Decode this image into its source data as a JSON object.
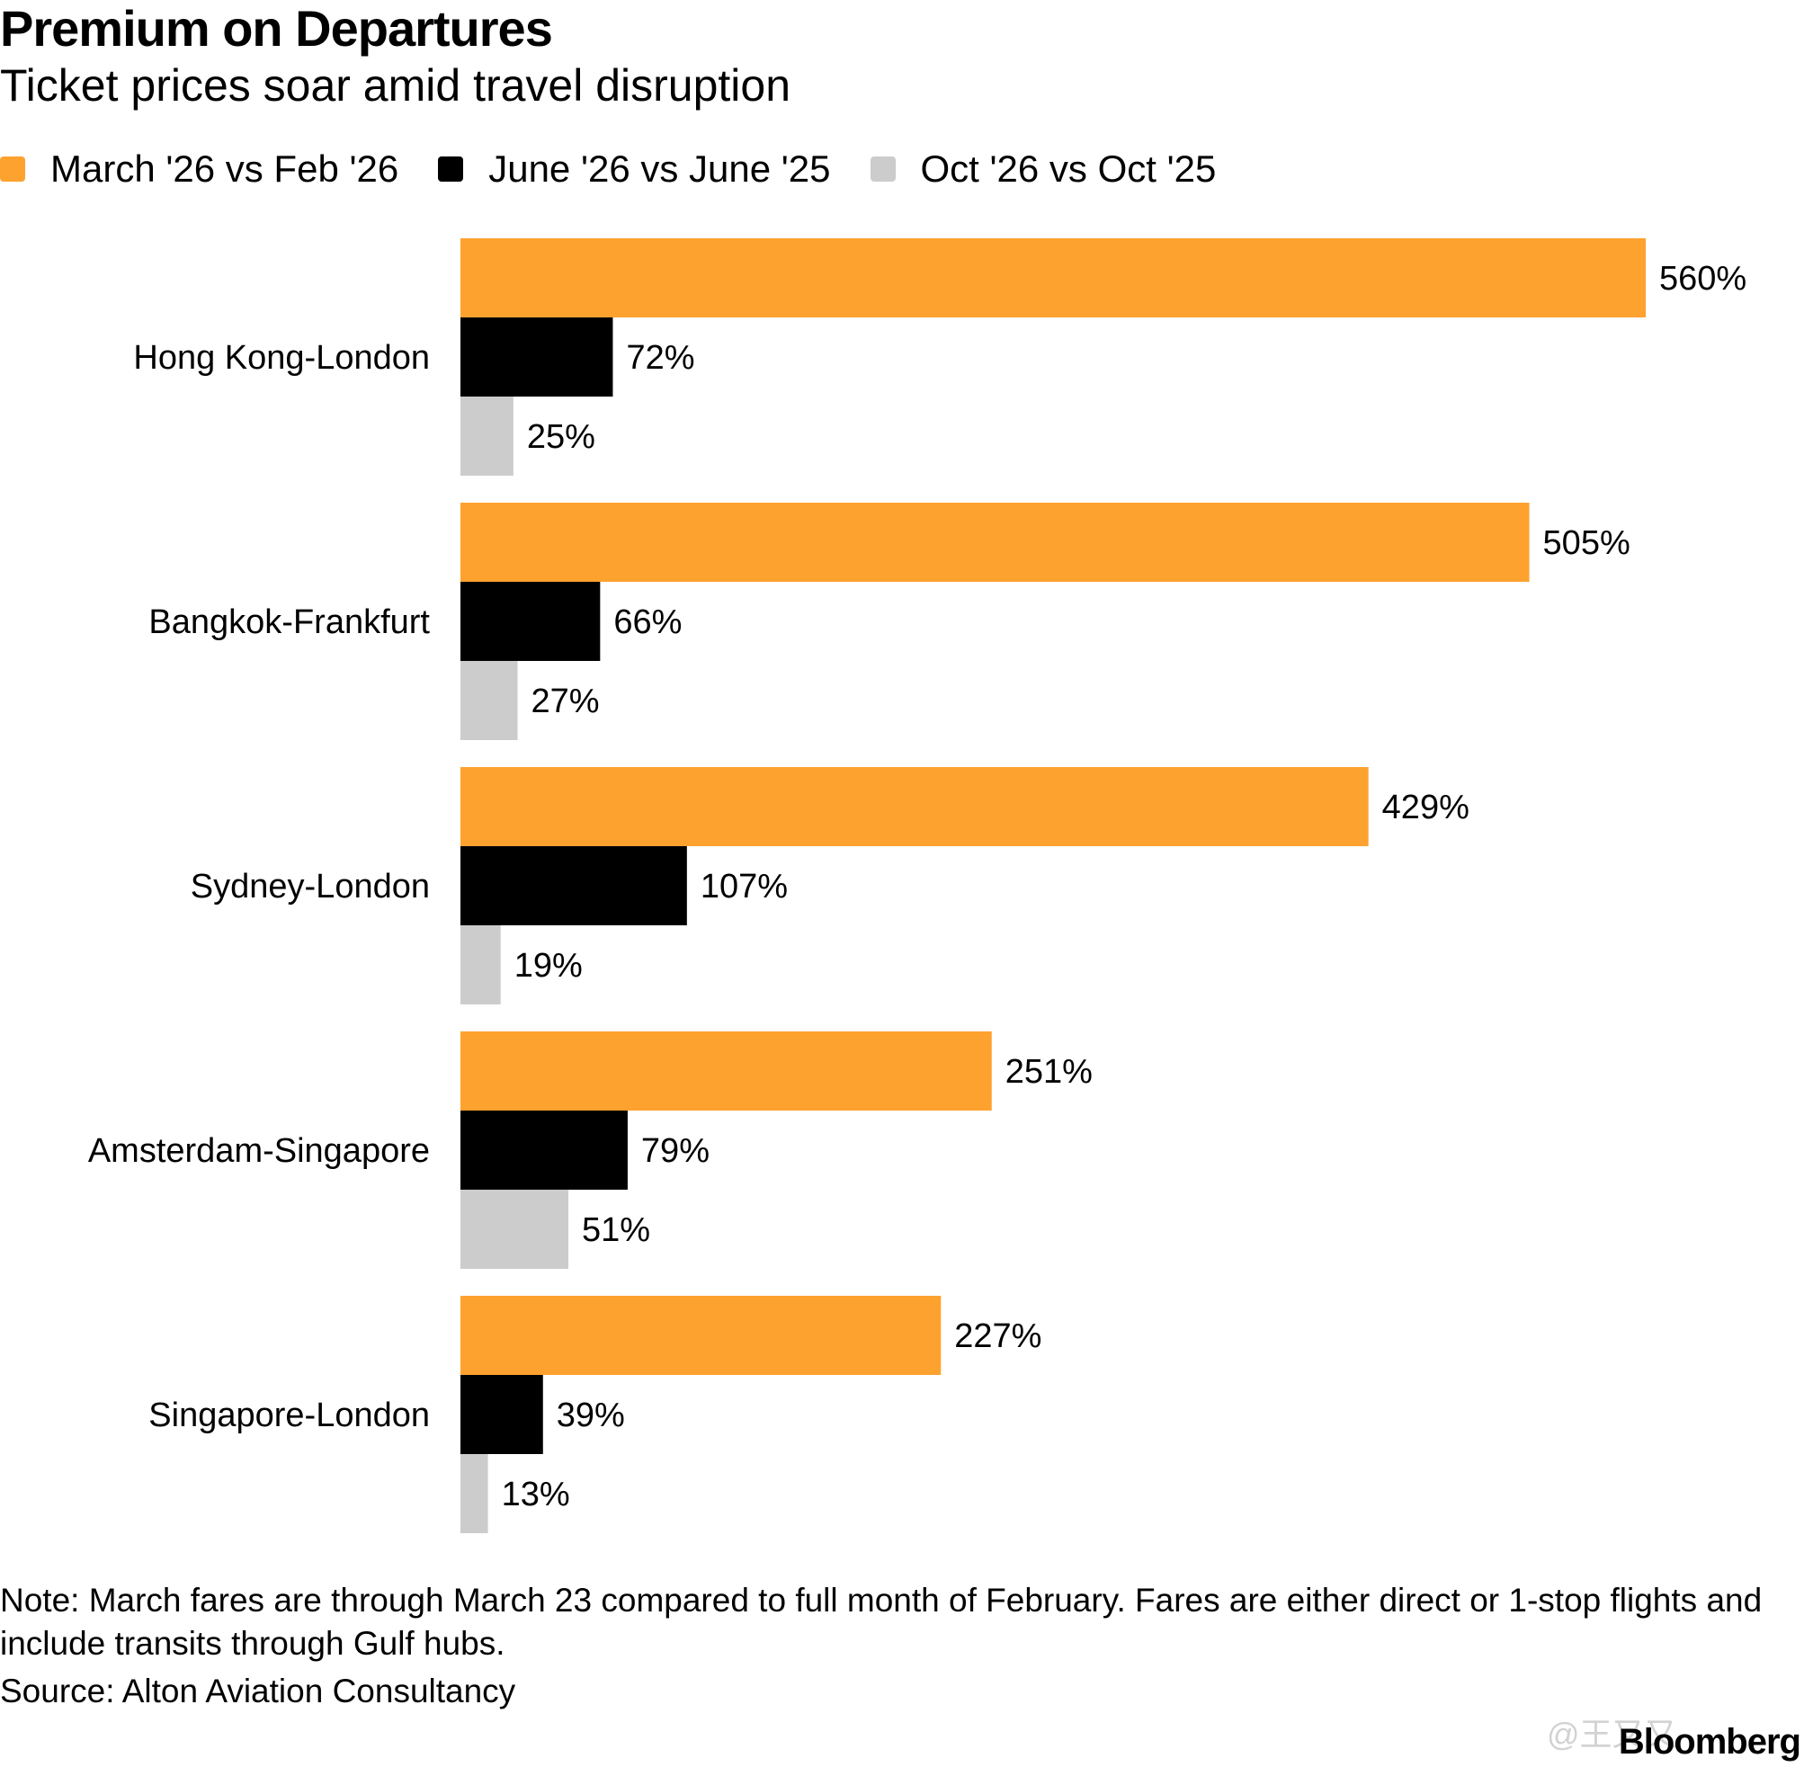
{
  "chart_data": {
    "type": "bar",
    "orientation": "horizontal",
    "title": "Premium on Departures",
    "subtitle": "Ticket prices soar amid travel disruption",
    "categories": [
      "Hong Kong-London",
      "Bangkok-Frankfurt",
      "Sydney-London",
      "Amsterdam-Singapore",
      "Singapore-London"
    ],
    "series": [
      {
        "name": "March '26 vs Feb '26",
        "color": "#FDA22F",
        "values": [
          560,
          505,
          429,
          251,
          227
        ],
        "labels": [
          "560%",
          "505%",
          "429%",
          "251%",
          "227%"
        ]
      },
      {
        "name": "June '26 vs June '25",
        "color": "#000000",
        "values": [
          72,
          66,
          107,
          79,
          39
        ],
        "labels": [
          "72%",
          "66%",
          "107%",
          "79%",
          "39%"
        ]
      },
      {
        "name": "Oct '26 vs Oct '25",
        "color": "#CCCCCC",
        "values": [
          25,
          27,
          19,
          51,
          13
        ],
        "labels": [
          "25%",
          "27%",
          "19%",
          "51%",
          "13%"
        ]
      }
    ],
    "xlim": [
      0,
      560
    ],
    "grid": false,
    "legend_position": "top-left"
  },
  "footer": {
    "note": "Note: March fares are through March 23 compared to full month of February. Fares are either direct or 1-stop flights and include transits through Gulf hubs.",
    "source": "Source: Alton Aviation Consultancy",
    "brand": "Bloomberg",
    "watermark": "@王又又"
  }
}
